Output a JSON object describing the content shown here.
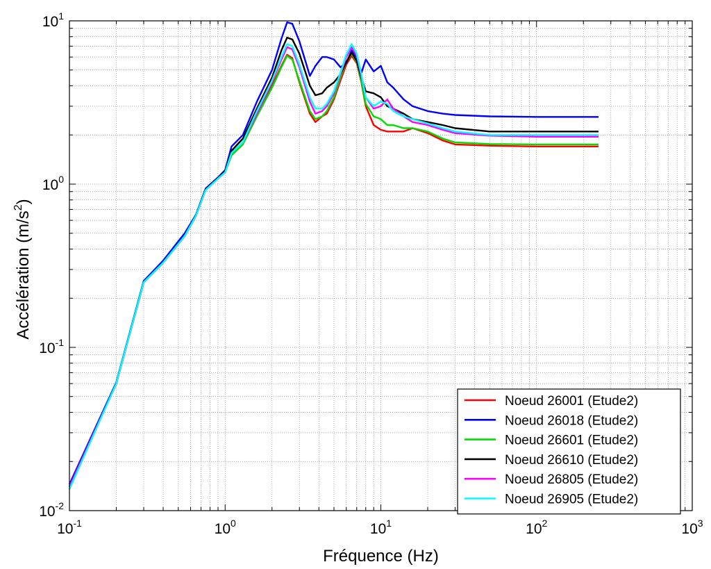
{
  "chart_data": {
    "type": "line",
    "title": "",
    "xlabel": "Fréquence (Hz)",
    "ylabel_main": "Accélération (m/s",
    "ylabel_sup": "2",
    "ylabel_close": ")",
    "x_scale": "log",
    "y_scale": "log",
    "xlim": [
      0.1,
      1000
    ],
    "ylim": [
      0.01,
      10
    ],
    "grid": true,
    "legend_position": "bottom-right",
    "x_ticks": [
      {
        "base": "10",
        "exp": "-1"
      },
      {
        "base": "10",
        "exp": "0"
      },
      {
        "base": "10",
        "exp": "1"
      },
      {
        "base": "10",
        "exp": "2"
      },
      {
        "base": "10",
        "exp": "3"
      }
    ],
    "y_ticks": [
      {
        "base": "10",
        "exp": "-2"
      },
      {
        "base": "10",
        "exp": "-1"
      },
      {
        "base": "10",
        "exp": "0"
      },
      {
        "base": "10",
        "exp": "1"
      }
    ],
    "x": [
      0.1,
      0.2,
      0.3,
      0.4,
      0.55,
      0.65,
      0.75,
      0.9,
      1.0,
      1.1,
      1.3,
      1.6,
      2.0,
      2.3,
      2.5,
      2.7,
      3.0,
      3.5,
      3.8,
      4.2,
      4.5,
      5.0,
      5.5,
      6.0,
      6.5,
      7.0,
      7.5,
      8.0,
      9.0,
      10.0,
      11.0,
      12.0,
      14.0,
      16.0,
      20.0,
      25.0,
      30.0,
      50.0,
      100.0,
      250.0
    ],
    "series": [
      {
        "name": "Noeud 26001 (Etude2)",
        "color": "#ff0000",
        "values": [
          0.014,
          0.06,
          0.25,
          0.33,
          0.48,
          0.64,
          0.92,
          1.08,
          1.18,
          1.55,
          1.8,
          2.7,
          4.0,
          5.3,
          6.2,
          5.9,
          4.2,
          2.7,
          2.4,
          2.6,
          2.7,
          3.3,
          4.3,
          5.4,
          6.1,
          5.5,
          4.2,
          3.0,
          2.3,
          2.15,
          2.1,
          2.1,
          2.1,
          2.2,
          2.05,
          1.85,
          1.75,
          1.72,
          1.7,
          1.7
        ]
      },
      {
        "name": "Noeud 26018 (Etude2)",
        "color": "#0000ff",
        "values": [
          0.0145,
          0.061,
          0.255,
          0.34,
          0.5,
          0.65,
          0.94,
          1.1,
          1.22,
          1.7,
          2.0,
          3.2,
          5.0,
          7.8,
          9.8,
          9.6,
          7.5,
          4.6,
          5.3,
          6.0,
          6.0,
          5.8,
          5.2,
          5.5,
          6.6,
          6.0,
          4.8,
          5.8,
          4.9,
          5.3,
          4.2,
          3.9,
          3.3,
          3.0,
          2.8,
          2.7,
          2.65,
          2.6,
          2.58,
          2.58
        ]
      },
      {
        "name": "Noeud 26601 (Etude2)",
        "color": "#00dd00",
        "values": [
          0.014,
          0.06,
          0.25,
          0.33,
          0.48,
          0.64,
          0.92,
          1.08,
          1.18,
          1.5,
          1.75,
          2.6,
          3.9,
          5.2,
          6.1,
          5.8,
          4.3,
          2.8,
          2.5,
          2.6,
          2.8,
          3.4,
          4.5,
          5.6,
          6.3,
          5.6,
          4.3,
          3.1,
          2.6,
          2.5,
          2.3,
          2.3,
          2.2,
          2.2,
          2.1,
          1.9,
          1.8,
          1.76,
          1.75,
          1.75
        ]
      },
      {
        "name": "Noeud 26610 (Etude2)",
        "color": "#000000",
        "values": [
          0.014,
          0.06,
          0.25,
          0.33,
          0.48,
          0.64,
          0.93,
          1.09,
          1.2,
          1.6,
          1.9,
          2.9,
          4.5,
          6.6,
          7.9,
          7.7,
          6.3,
          4.0,
          3.5,
          3.6,
          3.9,
          4.2,
          4.7,
          5.6,
          6.4,
          5.7,
          4.5,
          3.7,
          3.6,
          3.4,
          3.0,
          2.9,
          2.7,
          2.5,
          2.4,
          2.3,
          2.2,
          2.1,
          2.1,
          2.1
        ]
      },
      {
        "name": "Noeud 26805 (Etude2)",
        "color": "#ff00ff",
        "values": [
          0.014,
          0.06,
          0.25,
          0.33,
          0.48,
          0.64,
          0.92,
          1.08,
          1.18,
          1.55,
          1.8,
          2.7,
          4.2,
          5.8,
          6.9,
          6.7,
          5.2,
          3.2,
          2.7,
          2.8,
          3.0,
          3.6,
          4.7,
          6.0,
          6.9,
          6.1,
          4.6,
          3.4,
          2.9,
          3.0,
          3.3,
          2.9,
          2.6,
          2.4,
          2.3,
          2.15,
          2.05,
          1.98,
          1.95,
          1.95
        ]
      },
      {
        "name": "Noeud 26905 (Etude2)",
        "color": "#00ffff",
        "values": [
          0.0135,
          0.06,
          0.25,
          0.33,
          0.48,
          0.64,
          0.92,
          1.08,
          1.18,
          1.55,
          1.8,
          2.8,
          4.3,
          6.0,
          7.2,
          7.0,
          5.4,
          3.4,
          2.9,
          2.9,
          3.1,
          3.7,
          4.8,
          6.2,
          7.2,
          6.3,
          4.7,
          3.4,
          3.0,
          3.2,
          3.1,
          2.8,
          2.6,
          2.5,
          2.35,
          2.2,
          2.1,
          2.0,
          2.0,
          2.0
        ]
      }
    ]
  }
}
